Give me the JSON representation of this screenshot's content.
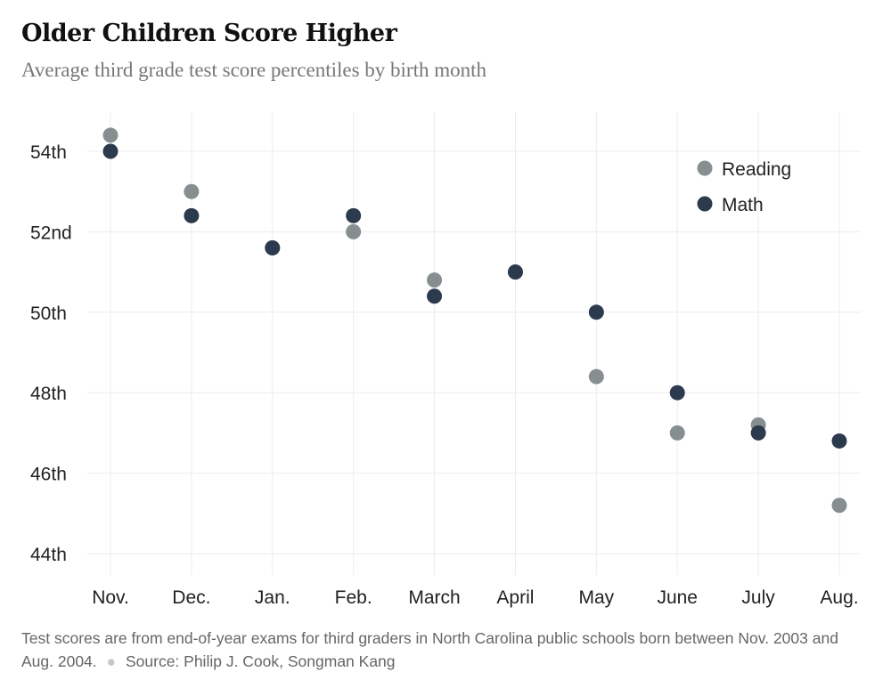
{
  "title": "Older Children Score Higher",
  "subtitle": "Average third grade test score percentiles by birth month",
  "footer": {
    "note": "Test scores are from end-of-year exams for third graders in North Carolina public schools born between Nov. 2003 and Aug. 2004.",
    "source": "Source: Philip J. Cook, Songman Kang"
  },
  "colors": {
    "reading": "#868e90",
    "math": "#2c3a4e",
    "grid": "#ececec"
  },
  "chart_data": {
    "type": "scatter",
    "title": "Older Children Score Higher",
    "subtitle": "Average third grade test score percentiles by birth month",
    "categories": [
      "Nov.",
      "Dec.",
      "Jan.",
      "Feb.",
      "March",
      "April",
      "May",
      "June",
      "July",
      "Aug."
    ],
    "series": [
      {
        "name": "Reading",
        "values": [
          54.4,
          53.0,
          51.6,
          52.0,
          50.8,
          51.0,
          48.4,
          47.0,
          47.2,
          45.2
        ]
      },
      {
        "name": "Math",
        "values": [
          54.0,
          52.4,
          51.6,
          52.4,
          50.4,
          51.0,
          50.0,
          48.0,
          47.0,
          46.8
        ]
      }
    ],
    "ylim": [
      43.5,
      55.5
    ],
    "yticks": [
      44,
      46,
      48,
      50,
      52,
      54
    ],
    "ytick_labels": [
      "44th",
      "46th",
      "48th",
      "50th",
      "52nd",
      "54th"
    ],
    "grid": true,
    "legend_position": "top-right",
    "xlabel": "",
    "ylabel": ""
  }
}
